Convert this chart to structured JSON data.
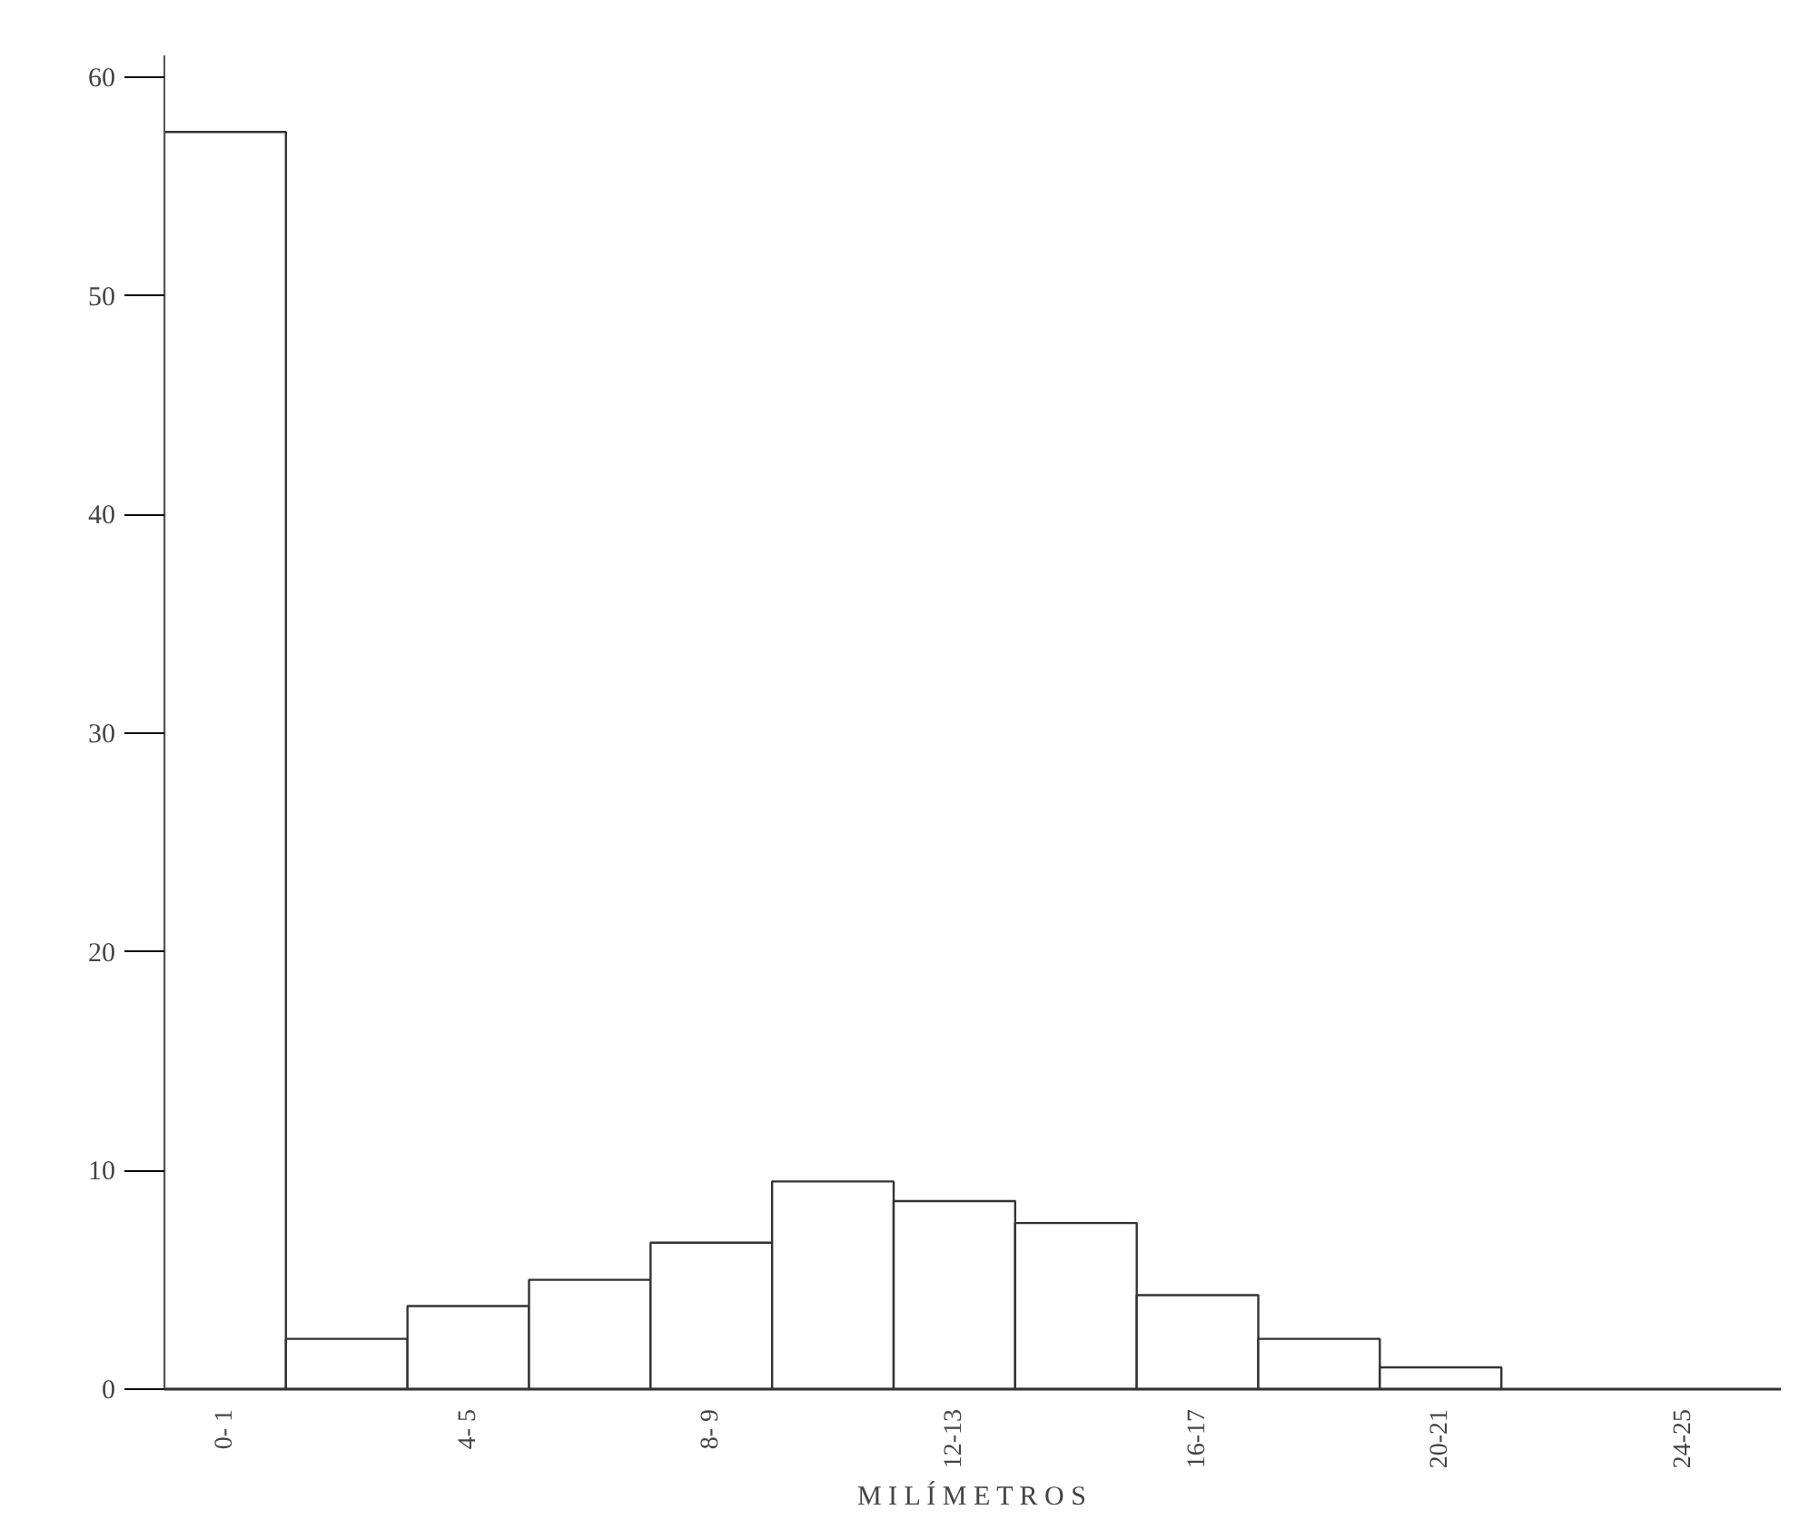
{
  "chart_data": {
    "type": "bar",
    "categories": [
      "0- 1",
      null,
      "4- 5",
      null,
      "8- 9",
      null,
      "12-13",
      null,
      "16-17",
      null,
      "20-21",
      null,
      "24-25"
    ],
    "values": [
      57.5,
      2.3,
      3.8,
      5.0,
      6.7,
      9.5,
      8.6,
      7.6,
      4.3,
      2.3,
      1.0,
      null,
      null
    ],
    "color": "#ffffff",
    "xlabel": "M I L Í M E T R O S",
    "ylim": [
      0,
      61
    ],
    "yticks": [
      0,
      10,
      20,
      30,
      40,
      50,
      60
    ],
    "grid": false
  }
}
